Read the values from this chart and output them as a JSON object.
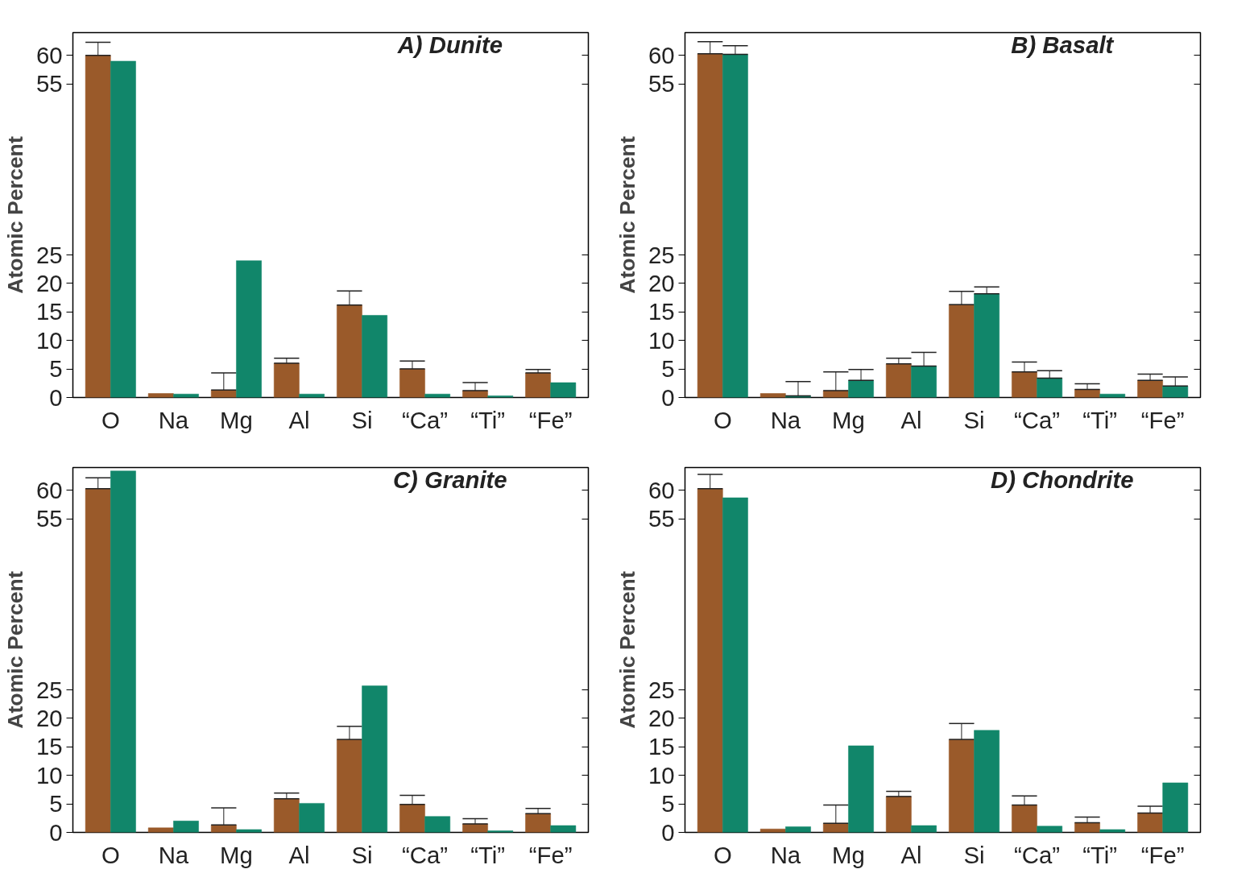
{
  "chart_data": [
    {
      "type": "bar",
      "title": "A) Dunite",
      "ylabel": "Atomic Percent",
      "categories": [
        "O",
        "Na",
        "Mg",
        "Al",
        "Si",
        "“Ca”",
        "“Ti”",
        "“Fe”"
      ],
      "ylim": [
        0,
        64
      ],
      "yticks": [
        0,
        5,
        10,
        15,
        20,
        25,
        55,
        60
      ],
      "grid": false,
      "series": [
        {
          "color": "#9a5a2a",
          "values": [
            60.0,
            0.7,
            1.3,
            6.0,
            16.2,
            5.0,
            1.2,
            4.3
          ],
          "errors": [
            [
              60.0,
              62.3
            ],
            null,
            [
              1.3,
              4.3
            ],
            [
              6.0,
              6.9
            ],
            [
              16.2,
              18.7
            ],
            [
              5.0,
              6.4
            ],
            [
              1.2,
              2.6
            ],
            [
              4.3,
              4.9
            ]
          ]
        },
        {
          "color": "#11866a",
          "values": [
            59.0,
            0.6,
            24.0,
            0.6,
            14.4,
            0.6,
            0.3,
            2.6
          ]
        }
      ]
    },
    {
      "type": "bar",
      "title": "B) Basalt",
      "ylabel": "Atomic Percent",
      "categories": [
        "O",
        "Na",
        "Mg",
        "Al",
        "Si",
        "“Ca”",
        "“Ti”",
        "“Fe”"
      ],
      "ylim": [
        0,
        64
      ],
      "yticks": [
        0,
        5,
        10,
        15,
        20,
        25,
        55,
        60
      ],
      "grid": false,
      "series": [
        {
          "color": "#9a5a2a",
          "values": [
            60.3,
            0.7,
            1.2,
            5.9,
            16.3,
            4.5,
            1.4,
            3.0
          ],
          "errors": [
            [
              60.3,
              62.4
            ],
            null,
            [
              1.2,
              4.5
            ],
            [
              5.9,
              6.9
            ],
            [
              16.3,
              18.6
            ],
            [
              4.5,
              6.2
            ],
            [
              1.4,
              2.4
            ],
            [
              3.0,
              4.1
            ]
          ]
        },
        {
          "color": "#11866a",
          "values": [
            60.2,
            0.3,
            3.0,
            5.5,
            18.2,
            3.4,
            0.6,
            2.0
          ],
          "errors": [
            [
              60.2,
              61.7
            ],
            [
              0.3,
              2.8
            ],
            [
              3.0,
              4.9
            ],
            [
              5.5,
              7.9
            ],
            [
              18.2,
              19.4
            ],
            [
              3.4,
              4.7
            ],
            null,
            [
              2.0,
              3.6
            ]
          ]
        }
      ]
    },
    {
      "type": "bar",
      "title": "C) Granite",
      "ylabel": "Atomic Percent",
      "categories": [
        "O",
        "Na",
        "Mg",
        "Al",
        "Si",
        "“Ca”",
        "“Ti”",
        "“Fe”"
      ],
      "ylim": [
        0,
        64
      ],
      "yticks": [
        0,
        5,
        10,
        15,
        20,
        25,
        55,
        60
      ],
      "grid": false,
      "series": [
        {
          "color": "#9a5a2a",
          "values": [
            60.3,
            0.8,
            1.3,
            5.9,
            16.3,
            4.9,
            1.5,
            3.3
          ],
          "errors": [
            [
              60.3,
              62.2
            ],
            null,
            [
              1.3,
              4.3
            ],
            [
              5.9,
              6.9
            ],
            [
              16.3,
              18.6
            ],
            [
              4.9,
              6.5
            ],
            [
              1.5,
              2.4
            ],
            [
              3.3,
              4.2
            ]
          ]
        },
        {
          "color": "#11866a",
          "values": [
            63.4,
            2.0,
            0.5,
            5.1,
            25.7,
            2.8,
            0.3,
            1.2
          ]
        }
      ]
    },
    {
      "type": "bar",
      "title": "D) Chondrite",
      "ylabel": "Atomic Percent",
      "categories": [
        "O",
        "Na",
        "Mg",
        "Al",
        "Si",
        "“Ca”",
        "“Ti”",
        "“Fe”"
      ],
      "ylim": [
        0,
        64
      ],
      "yticks": [
        0,
        5,
        10,
        15,
        20,
        25,
        55,
        60
      ],
      "grid": false,
      "series": [
        {
          "color": "#9a5a2a",
          "values": [
            60.3,
            0.6,
            1.6,
            6.3,
            16.3,
            4.8,
            1.7,
            3.4
          ],
          "errors": [
            [
              60.3,
              62.8
            ],
            null,
            [
              1.6,
              4.8
            ],
            [
              6.3,
              7.2
            ],
            [
              16.3,
              19.1
            ],
            [
              4.8,
              6.4
            ],
            [
              1.7,
              2.7
            ],
            [
              3.4,
              4.6
            ]
          ]
        },
        {
          "color": "#11866a",
          "values": [
            58.7,
            1.0,
            15.2,
            1.2,
            17.9,
            1.1,
            0.5,
            8.7
          ]
        }
      ]
    }
  ]
}
